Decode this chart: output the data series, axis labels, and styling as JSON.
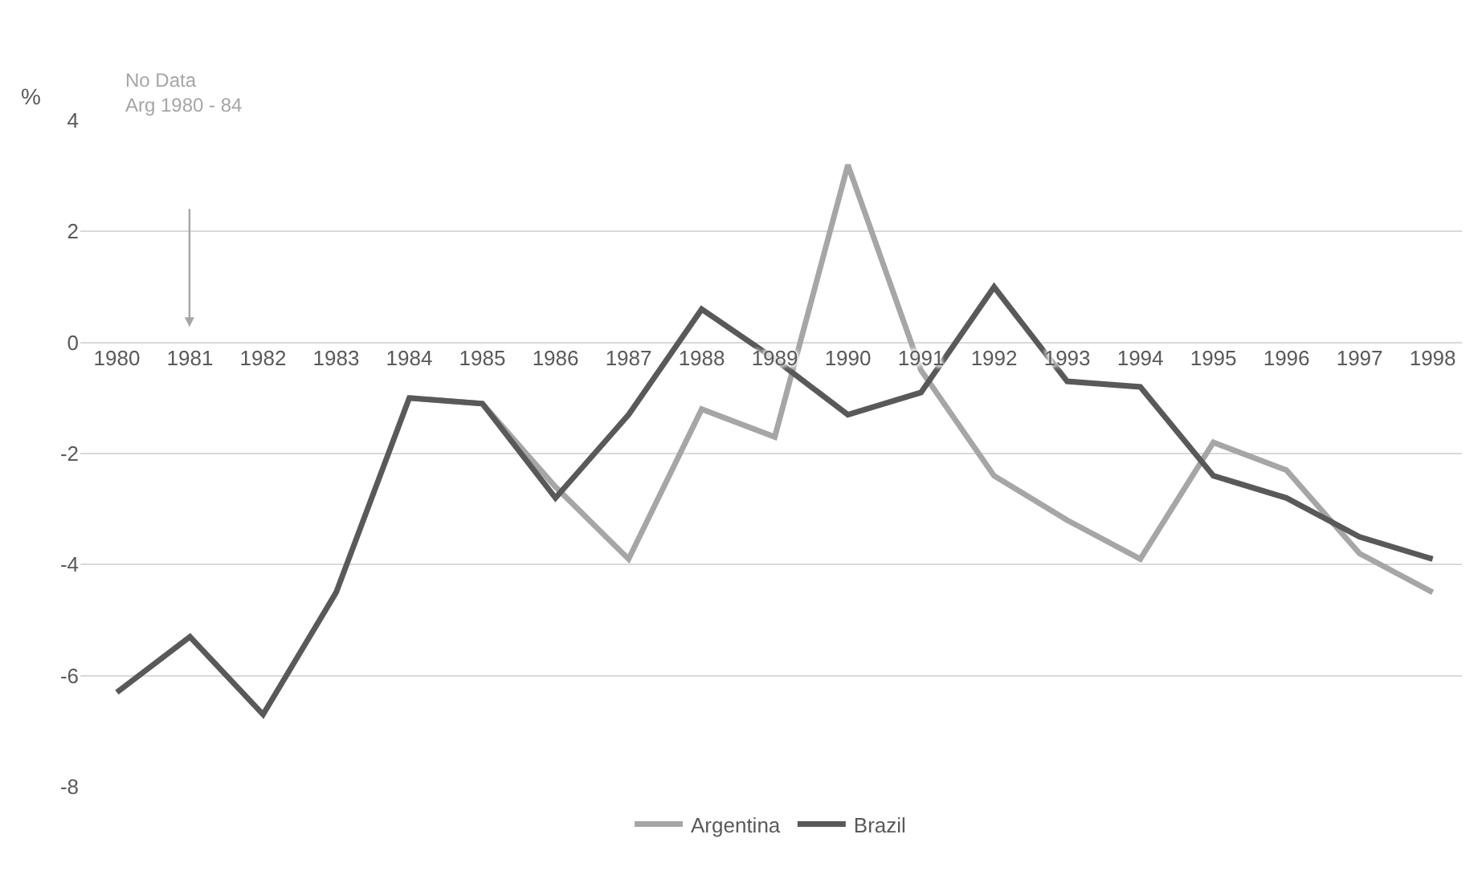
{
  "chart_data": {
    "type": "line",
    "ylabel": "%",
    "categories": [
      "1980",
      "1981",
      "1982",
      "1983",
      "1984",
      "1985",
      "1986",
      "1987",
      "1988",
      "1989",
      "1990",
      "1991",
      "1992",
      "1993",
      "1994",
      "1995",
      "1996",
      "1997",
      "1998"
    ],
    "series": [
      {
        "name": "Argentina",
        "color": "#a6a6a6",
        "values": [
          null,
          null,
          null,
          null,
          -1.0,
          -1.1,
          -2.6,
          -3.9,
          -1.2,
          -1.7,
          3.2,
          -0.5,
          -2.4,
          -3.2,
          -3.9,
          -1.8,
          -2.3,
          -3.8,
          -4.5
        ]
      },
      {
        "name": "Brazil",
        "color": "#595959",
        "values": [
          -6.3,
          -5.3,
          -6.7,
          -4.5,
          -1.0,
          -1.1,
          -2.8,
          -1.3,
          0.6,
          -0.3,
          -1.3,
          -0.9,
          1.0,
          -0.7,
          -0.8,
          -2.4,
          -2.8,
          -3.5,
          -3.9
        ]
      }
    ],
    "ylim": [
      -8,
      4
    ],
    "yticks": [
      -8,
      -6,
      -4,
      -2,
      0,
      2,
      4
    ],
    "grid": "y",
    "legend": "bottom",
    "marker": "none",
    "line_style": "solid",
    "annotations": [
      "No Data\nArg 1980 - 84"
    ]
  }
}
